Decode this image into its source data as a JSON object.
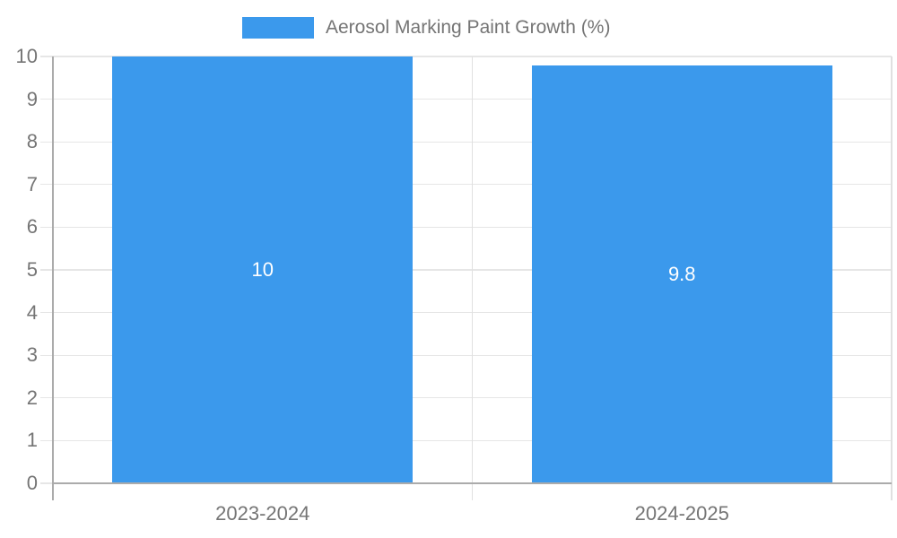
{
  "chart_data": {
    "type": "bar",
    "title": "Aerosol Marking Paint Growth (%)",
    "legend": {
      "label": "Aerosol Marking Paint Growth (%)",
      "position": "top"
    },
    "categories": [
      "2023-2024",
      "2024-2025"
    ],
    "series": [
      {
        "name": "Aerosol Marking Paint Growth (%)",
        "values": [
          10,
          9.8
        ]
      }
    ],
    "value_labels": [
      "10",
      "9.8"
    ],
    "xlabel": "",
    "ylabel": "",
    "ylim": [
      0,
      10
    ],
    "ytick_step": 1,
    "ytick_labels": [
      "0",
      "1",
      "2",
      "3",
      "4",
      "5",
      "6",
      "7",
      "8",
      "9",
      "10"
    ],
    "grid": true,
    "legend_position": "top",
    "colors": {
      "bar": "#3B99EC",
      "label_text": "#757575",
      "value_label": "#FFFFFF",
      "gridline": "#E6E6E6",
      "separator": "#E0E0E0",
      "axis": "#ABABAB",
      "background": "#FFFFFF"
    }
  }
}
